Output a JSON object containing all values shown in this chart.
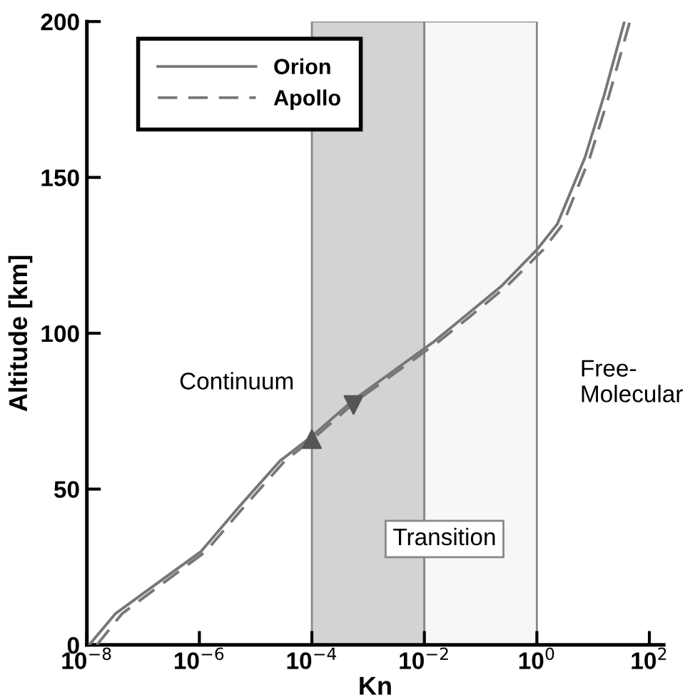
{
  "chart_data": {
    "type": "line",
    "xlabel": "Kn",
    "ylabel": "Altitude [km]",
    "log": "x",
    "xlim": [
      1e-08,
      180
    ],
    "ylim": [
      0,
      200
    ],
    "xticks": [
      {
        "value": 1e-08,
        "label": "10$^{−8}$"
      },
      {
        "value": 1e-06,
        "label": "10$^{−6}$"
      },
      {
        "value": 0.0001,
        "label": "10$^{−4}$"
      },
      {
        "value": 0.01,
        "label": "10$^{−2}$"
      },
      {
        "value": 1,
        "label": "10$^{0}$"
      },
      {
        "value": 100,
        "label": "10$^{2}$"
      }
    ],
    "yticks": [
      0,
      50,
      100,
      150,
      200
    ],
    "grid": false,
    "legend": "top left",
    "series": [
      {
        "name": "Orion",
        "color": "#777777",
        "line_style": "solid",
        "x": [
          1.1e-08,
          3.2e-08,
          1.07e-06,
          4.9e-06,
          2.7e-05,
          9.3e-05,
          0.00055,
          0.014,
          0.052,
          0.24,
          1.0,
          2.3,
          7.2,
          15.5,
          36
        ],
        "values": [
          0,
          10,
          30,
          44,
          59,
          66.5,
          78.6,
          97,
          105.4,
          115.3,
          126.8,
          135,
          156.5,
          176,
          200
        ]
      },
      {
        "name": "Apollo",
        "color": "#777777",
        "line_style": "dashed",
        "x": [
          1.5e-08,
          4.2e-08,
          1.3e-06,
          6e-06,
          3.3e-05,
          0.00011,
          0.00065,
          0.017,
          0.065,
          0.3,
          1.3,
          2.9,
          8.8,
          19,
          45
        ],
        "values": [
          0,
          10,
          30,
          44,
          59,
          66.5,
          78.6,
          97,
          105.4,
          115.3,
          126.8,
          135,
          156.5,
          176,
          200
        ]
      },
      {
        "type": "scatter",
        "color": "#555555",
        "marker": "triangle",
        "x": [
          0.0001
        ],
        "values": [
          66
        ]
      },
      {
        "type": "scatter",
        "color": "#555555",
        "marker": "triangle_down",
        "x": [
          0.00055
        ],
        "values": [
          77
        ]
      }
    ],
    "bands": [
      {
        "axis": "x",
        "from": 0.0001,
        "to": 0.01,
        "color": "#d3d3d3"
      },
      {
        "axis": "x",
        "from": 0.01,
        "to": 1,
        "color": "#f7f7f7"
      }
    ],
    "annotations": [
      "Continuum",
      "Transition",
      "Free-\nMolecular"
    ]
  }
}
